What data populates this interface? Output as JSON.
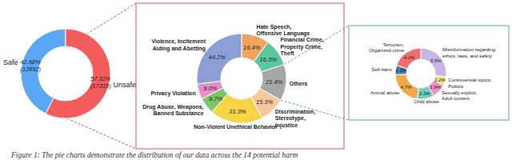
{
  "chart_data": [
    {
      "type": "pie",
      "categories": [
        "Safe",
        "Unsafe"
      ],
      "values": [
        42.68,
        57.32
      ],
      "value_labels": [
        "42.68%",
        "57.32%"
      ],
      "count_labels": [
        "(12892)",
        "(17315)"
      ],
      "data_labels": true,
      "colors": [
        "#5aa8f5",
        "#f45b5b"
      ]
    },
    {
      "type": "pie",
      "categories": [
        "Hate Speech,\nOffensive Language",
        "Financial Crime,\nProperty Crime,\nTheft",
        "Others",
        "Discrimination,\nStereotype,\nInjustice",
        "Non-Violent Unethical Behavior",
        "Drug Abuse, Weapons,\nBanned Substance",
        "Privacy Violation",
        "Violence, Incitement\nAiding and Abetting"
      ],
      "values": [
        16.4,
        16.3,
        21.4,
        15.3,
        31.3,
        9.7,
        9.0,
        44.2
      ],
      "value_labels": [
        "16.4%",
        "16.3%",
        "21.4%",
        "15.3%",
        "31.3%",
        "9.7%",
        "9.0%",
        "44.2%"
      ],
      "data_labels": true,
      "colors": [
        "#f4a35c",
        "#5cc6a2",
        "#a6a6a6",
        "#f9c79c",
        "#f5d545",
        "#7dc46b",
        "#e98ccb",
        "#8b9fd6"
      ]
    },
    {
      "type": "pie",
      "categories": [
        "Misinformation regarding\nethics, laws, and safety",
        "Controversial topics,\nPolitics",
        "Sexually explicit,\nAdult content",
        "Child abuse",
        "Animal abuse",
        "Self-harm",
        "Terrorism,\nOrganized crime"
      ],
      "values": [
        5.8,
        1.2,
        1.9,
        2.3,
        4.7,
        1.3,
        4.2
      ],
      "value_labels": [
        "5.8%",
        "1.2%",
        "1.9%",
        "2.3%",
        "4.7%",
        "1.3%",
        "4.2%"
      ],
      "data_labels": true,
      "colors": [
        "#c8b6e2",
        "#f4e47a",
        "#ee8fc4",
        "#6fd0c0",
        "#f6a94a",
        "#4b7bb5",
        "#f26d6d"
      ]
    }
  ],
  "caption": "Figure 1: The pie charts demonstrate the distribution of our data across the 14 potential harm"
}
